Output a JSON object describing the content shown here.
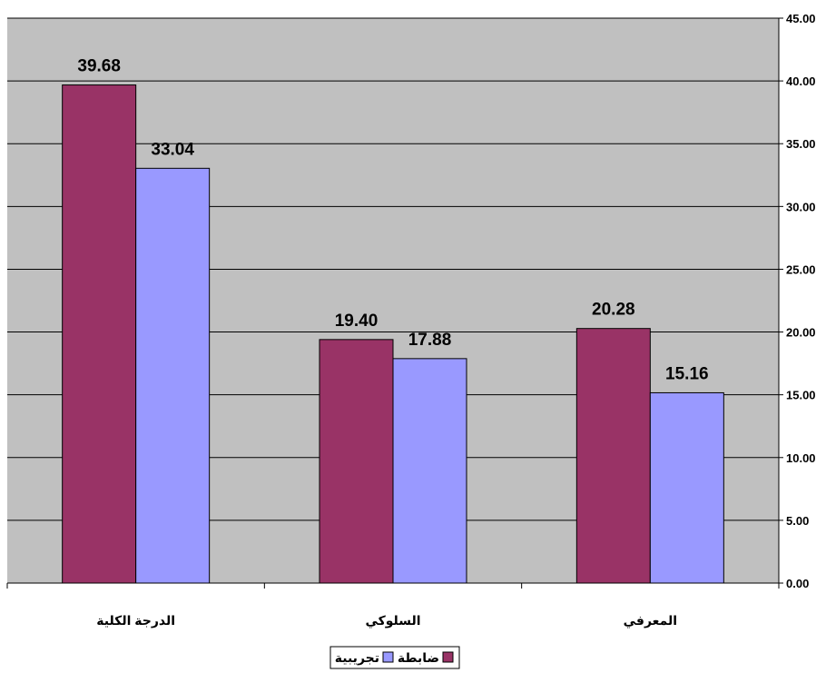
{
  "chart_data": {
    "type": "bar",
    "categories": [
      "الدرجة الكلية",
      "السلوكي",
      "المعرفي"
    ],
    "series": [
      {
        "name": "ضابطة",
        "values": [
          39.68,
          19.4,
          20.28
        ],
        "value_labels": [
          "39.68",
          "19.40",
          "20.28"
        ],
        "color": "#993366"
      },
      {
        "name": "تجريبية",
        "values": [
          33.04,
          17.88,
          15.16
        ],
        "value_labels": [
          "33.04",
          "17.88",
          "15.16"
        ],
        "color": "#9999ff"
      }
    ],
    "y_ticks": [
      "0.00",
      "5.00",
      "10.00",
      "15.00",
      "20.00",
      "25.00",
      "30.00",
      "35.00",
      "40.00",
      "45.00"
    ],
    "ylim": [
      0,
      45
    ],
    "y_axis_side": "right",
    "grid": true,
    "plot_background": "#c0c0c0",
    "legend_placement": "bottom-center",
    "title": "",
    "xlabel": "",
    "ylabel": ""
  }
}
